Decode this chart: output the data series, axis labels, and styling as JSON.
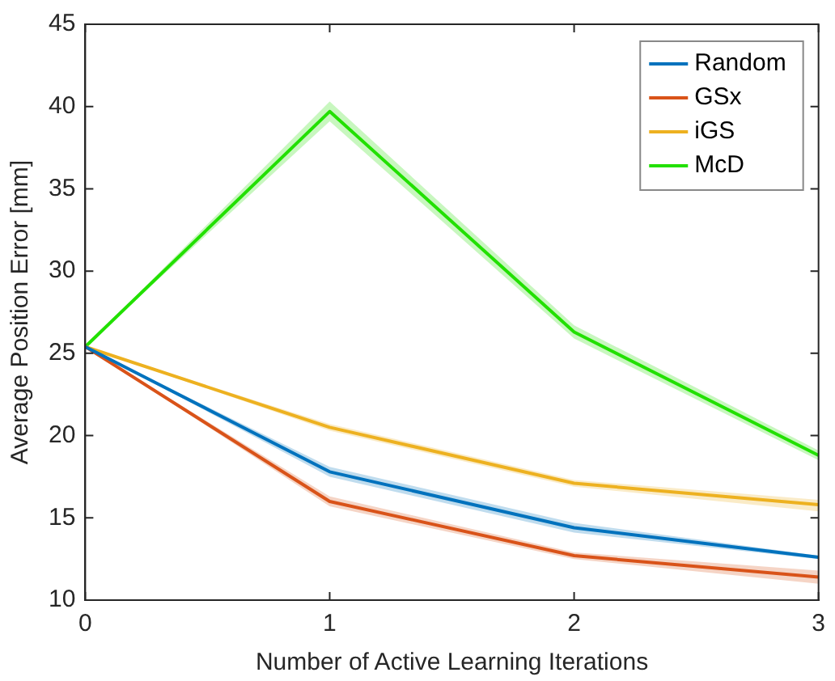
{
  "chart_data": {
    "type": "line",
    "xlabel": "Number of Active Learning Iterations",
    "ylabel": "Average Position Error [mm]",
    "x": [
      0,
      1,
      2,
      3
    ],
    "xlim": [
      0,
      3
    ],
    "xticks": [
      0,
      1,
      2,
      3
    ],
    "ylim": [
      10,
      45
    ],
    "yticks": [
      10,
      15,
      20,
      25,
      30,
      35,
      40,
      45
    ],
    "legend": "top right",
    "grid": false,
    "marker": "none",
    "line_style": "solid",
    "series": [
      {
        "name": "Random",
        "color": "#0072bd",
        "values": [
          25.4,
          17.8,
          14.4,
          12.6
        ],
        "lower": [
          25.4,
          17.5,
          14.1,
          12.5
        ],
        "upper": [
          25.4,
          18.1,
          14.7,
          12.7
        ]
      },
      {
        "name": "GSx",
        "color": "#d95319",
        "values": [
          25.4,
          16.0,
          12.7,
          11.4
        ],
        "lower": [
          25.4,
          15.7,
          12.5,
          11.0
        ],
        "upper": [
          25.4,
          16.3,
          12.9,
          11.8
        ]
      },
      {
        "name": "iGS",
        "color": "#edb120",
        "values": [
          25.4,
          20.5,
          17.1,
          15.8
        ],
        "lower": [
          25.4,
          20.3,
          16.9,
          15.4
        ],
        "upper": [
          25.4,
          20.7,
          17.3,
          16.1
        ]
      },
      {
        "name": "McD",
        "color": "#22e000",
        "values": [
          25.4,
          39.7,
          26.3,
          18.8
        ],
        "lower": [
          25.4,
          39.1,
          25.9,
          18.5
        ],
        "upper": [
          25.4,
          40.3,
          26.7,
          19.1
        ]
      }
    ]
  }
}
